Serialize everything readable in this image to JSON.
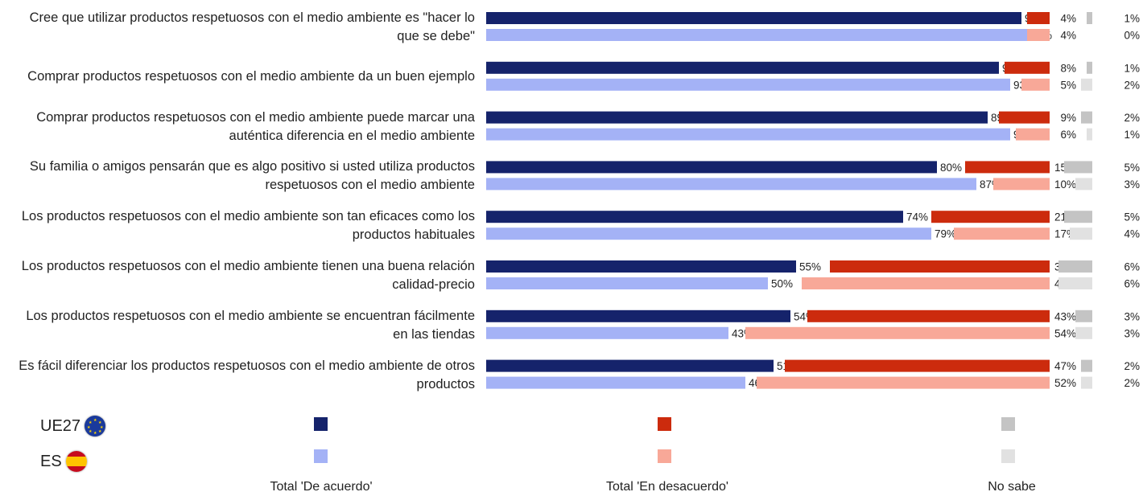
{
  "legend": {
    "eu_label": "UE27",
    "es_label": "ES",
    "agree_label": "Total 'De acuerdo'",
    "disagree_label": "Total 'En desacuerdo'",
    "dk_label": "No sabe"
  },
  "colors": {
    "eu_agree": "#15236b",
    "es_agree": "#a4b2f6",
    "eu_disagree": "#cc2b0d",
    "es_disagree": "#f8a898",
    "eu_dk": "#c4c4c4",
    "es_dk": "#e1e1e1"
  },
  "chart_data": {
    "type": "bar",
    "orientation": "horizontal",
    "stacked": false,
    "value_suffix": "%",
    "categories": [
      "Cree que utilizar productos respetuosos con el medio ambiente es \"hacer lo que se debe\"",
      "Comprar productos respetuosos con el medio ambiente da un buen ejemplo",
      "Comprar productos respetuosos con el medio ambiente puede marcar una auténtica diferencia en el medio ambiente",
      "Su familia o amigos pensarán que es algo positivo si usted utiliza productos respetuosos con el medio ambiente",
      "Los productos respetuosos con el medio ambiente son tan eficaces como los productos habituales",
      "Los productos respetuosos con el medio ambiente tienen una buena relación calidad-precio",
      "Los productos respetuosos con el medio ambiente se encuentran fácilmente en las tiendas",
      "Es fácil diferenciar los productos respetuosos con el medio ambiente de otros productos"
    ],
    "category_lines": [
      [
        "Cree que utilizar productos respetuosos con el medio ambiente es \"hacer lo",
        "que se debe\""
      ],
      [
        "Comprar productos respetuosos con el medio ambiente da un buen ejemplo"
      ],
      [
        "Comprar productos respetuosos con el medio ambiente puede marcar una",
        "auténtica diferencia en el medio ambiente"
      ],
      [
        "Su familia o amigos pensarán que es algo positivo si usted utiliza productos",
        "respetuosos con el medio ambiente"
      ],
      [
        "Los productos respetuosos con el medio ambiente son tan eficaces como los",
        "productos habituales"
      ],
      [
        "Los productos respetuosos con el medio ambiente tienen una buena relación",
        "calidad-precio"
      ],
      [
        "Los productos respetuosos con el medio ambiente se encuentran fácilmente",
        "en las tiendas"
      ],
      [
        "Es fácil diferenciar los productos respetuosos con el medio ambiente de otros",
        "productos"
      ]
    ],
    "groups": [
      {
        "name": "Total 'De acuerdo'",
        "series": [
          {
            "name": "UE27",
            "values": [
              95,
              91,
              89,
              80,
              74,
              55,
              54,
              51
            ]
          },
          {
            "name": "ES",
            "values": [
              96,
              93,
              93,
              87,
              79,
              50,
              43,
              46
            ]
          }
        ]
      },
      {
        "name": "Total 'En desacuerdo'",
        "series": [
          {
            "name": "UE27",
            "values": [
              4,
              8,
              9,
              15,
              21,
              39,
              43,
              47
            ]
          },
          {
            "name": "ES",
            "values": [
              4,
              5,
              6,
              10,
              17,
              44,
              54,
              52
            ]
          }
        ]
      },
      {
        "name": "No sabe",
        "series": [
          {
            "name": "UE27",
            "values": [
              1,
              1,
              2,
              5,
              5,
              6,
              3,
              2
            ]
          },
          {
            "name": "ES",
            "values": [
              0,
              2,
              1,
              3,
              4,
              6,
              3,
              2
            ]
          }
        ]
      }
    ],
    "grid": false,
    "legend_position": "bottom"
  }
}
